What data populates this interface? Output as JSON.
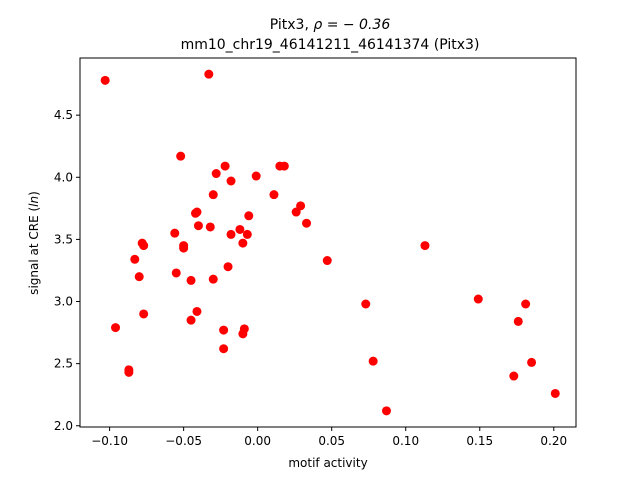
{
  "chart_data": {
    "type": "scatter",
    "title_line1_prefix": "Pitx3, ",
    "title_line1_rho": "ρ = − 0.36",
    "title_line2": "mm10_chr19_46141211_46141374 (Pitx3)",
    "xlabel": "motif activity",
    "ylabel_prefix": "signal at CRE (",
    "ylabel_italic": "ln",
    "ylabel_suffix": ")",
    "xlim": [
      -0.12,
      0.215
    ],
    "ylim": [
      1.99,
      4.96
    ],
    "xticks": [
      -0.1,
      -0.05,
      0.0,
      0.05,
      0.1,
      0.15,
      0.2
    ],
    "xtick_labels": [
      "−0.10",
      "−0.05",
      "0.00",
      "0.05",
      "0.10",
      "0.15",
      "0.20"
    ],
    "yticks": [
      2.0,
      2.5,
      3.0,
      3.5,
      4.0,
      4.5
    ],
    "ytick_labels": [
      "2.0",
      "2.5",
      "3.0",
      "3.5",
      "4.0",
      "4.5"
    ],
    "marker_color": "#ff0000",
    "grid": false,
    "legend": "none",
    "points": [
      [
        -0.103,
        4.78
      ],
      [
        -0.096,
        2.79
      ],
      [
        -0.087,
        2.43
      ],
      [
        -0.087,
        2.45
      ],
      [
        -0.083,
        3.34
      ],
      [
        -0.08,
        3.2
      ],
      [
        -0.078,
        3.47
      ],
      [
        -0.077,
        3.45
      ],
      [
        -0.077,
        2.9
      ],
      [
        -0.056,
        3.55
      ],
      [
        -0.055,
        3.23
      ],
      [
        -0.052,
        4.17
      ],
      [
        -0.05,
        3.43
      ],
      [
        -0.05,
        3.45
      ],
      [
        -0.045,
        2.85
      ],
      [
        -0.045,
        3.17
      ],
      [
        -0.042,
        3.71
      ],
      [
        -0.041,
        3.72
      ],
      [
        -0.041,
        2.92
      ],
      [
        -0.04,
        3.61
      ],
      [
        -0.033,
        4.83
      ],
      [
        -0.032,
        3.6
      ],
      [
        -0.03,
        3.86
      ],
      [
        -0.03,
        3.18
      ],
      [
        -0.028,
        4.03
      ],
      [
        -0.023,
        2.77
      ],
      [
        -0.023,
        2.62
      ],
      [
        -0.022,
        4.09
      ],
      [
        -0.02,
        3.28
      ],
      [
        -0.018,
        3.97
      ],
      [
        -0.018,
        3.54
      ],
      [
        -0.012,
        3.58
      ],
      [
        -0.01,
        3.47
      ],
      [
        -0.01,
        2.74
      ],
      [
        -0.009,
        2.78
      ],
      [
        -0.007,
        3.54
      ],
      [
        -0.006,
        3.69
      ],
      [
        -0.001,
        4.01
      ],
      [
        0.011,
        3.86
      ],
      [
        0.015,
        4.09
      ],
      [
        0.018,
        4.09
      ],
      [
        0.026,
        3.72
      ],
      [
        0.029,
        3.77
      ],
      [
        0.033,
        3.63
      ],
      [
        0.047,
        3.33
      ],
      [
        0.073,
        2.98
      ],
      [
        0.078,
        2.52
      ],
      [
        0.087,
        2.12
      ],
      [
        0.113,
        3.45
      ],
      [
        0.149,
        3.02
      ],
      [
        0.173,
        2.4
      ],
      [
        0.176,
        2.84
      ],
      [
        0.181,
        2.98
      ],
      [
        0.185,
        2.51
      ],
      [
        0.201,
        2.26
      ]
    ]
  }
}
